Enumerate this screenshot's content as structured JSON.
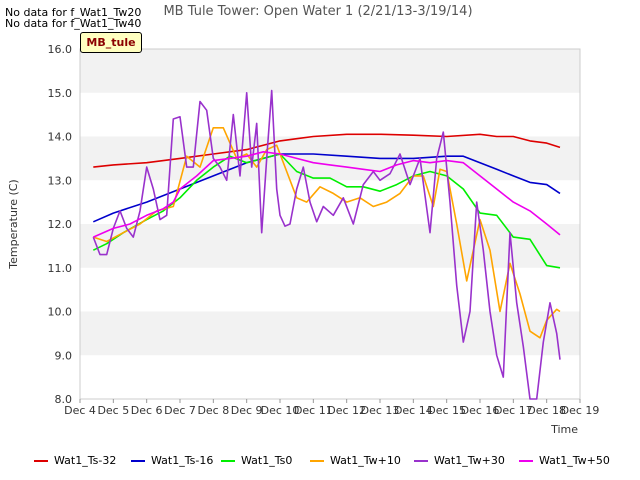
{
  "notes": [
    "No data for f_Wat1_Tw20",
    "No data for f_Wat1_Tw40"
  ],
  "badge": "MB_tule",
  "chart_data": {
    "type": "line",
    "title": "MB Tule Tower: Open Water 1 (2/21/13-3/19/14)",
    "xlabel": "Time",
    "ylabel": "Temperature (C)",
    "xlim": [
      4,
      19
    ],
    "ylim": [
      8.0,
      16.0
    ],
    "x_ticks": [
      4,
      5,
      6,
      7,
      8,
      9,
      10,
      11,
      12,
      13,
      14,
      15,
      16,
      17,
      18,
      19
    ],
    "x_tick_labels": [
      "Dec 4",
      "Dec 5",
      "Dec 6",
      "Dec 7",
      "Dec 8",
      "Dec 9",
      "Dec 10",
      "Dec 11",
      "Dec 12",
      "Dec 13",
      "Dec 14",
      "Dec 15",
      "Dec 16",
      "Dec 17",
      "Dec 18",
      "Dec 19"
    ],
    "y_ticks": [
      8.0,
      9.0,
      10.0,
      11.0,
      12.0,
      13.0,
      14.0,
      15.0,
      16.0
    ],
    "y_tick_labels": [
      "8.0",
      "9.0",
      "10.0",
      "11.0",
      "12.0",
      "13.0",
      "14.0",
      "15.0",
      "16.0"
    ],
    "grid": "horizontal bands",
    "legend_position": "bottom",
    "series": [
      {
        "name": "Wat1_Ts-32",
        "color": "#dd0000",
        "x": [
          4.4,
          5.0,
          6.0,
          7.0,
          8.0,
          9.0,
          10.0,
          10.5,
          11.0,
          12.0,
          13.0,
          14.0,
          15.0,
          16.0,
          16.5,
          17.0,
          17.5,
          18.0,
          18.4
        ],
        "y": [
          13.3,
          13.35,
          13.4,
          13.5,
          13.6,
          13.7,
          13.9,
          13.95,
          14.0,
          14.05,
          14.05,
          14.03,
          14.0,
          14.05,
          14.0,
          14.0,
          13.9,
          13.85,
          13.75
        ]
      },
      {
        "name": "Wat1_Ts-16",
        "color": "#0000cc",
        "x": [
          4.4,
          5.0,
          6.0,
          7.0,
          8.0,
          9.0,
          10.0,
          11.0,
          12.0,
          13.0,
          14.0,
          15.0,
          15.5,
          16.0,
          16.5,
          17.0,
          17.5,
          18.0,
          18.4
        ],
        "y": [
          12.05,
          12.25,
          12.5,
          12.8,
          13.1,
          13.4,
          13.6,
          13.6,
          13.55,
          13.5,
          13.5,
          13.55,
          13.55,
          13.4,
          13.25,
          13.1,
          12.95,
          12.9,
          12.7
        ]
      },
      {
        "name": "Wat1_Ts0",
        "color": "#00ee00",
        "x": [
          4.4,
          4.8,
          5.3,
          6.0,
          6.5,
          7.0,
          7.5,
          8.0,
          8.5,
          9.0,
          9.5,
          10.0,
          10.5,
          11.0,
          11.5,
          12.0,
          12.5,
          13.0,
          13.5,
          14.0,
          14.5,
          15.0,
          15.5,
          16.0,
          16.5,
          17.0,
          17.5,
          18.0,
          18.4
        ],
        "y": [
          11.4,
          11.55,
          11.8,
          12.1,
          12.3,
          12.6,
          13.0,
          13.3,
          13.55,
          13.4,
          13.5,
          13.6,
          13.2,
          13.05,
          13.05,
          12.85,
          12.85,
          12.75,
          12.9,
          13.1,
          13.2,
          13.1,
          12.8,
          12.25,
          12.2,
          11.7,
          11.65,
          11.05,
          11.0
        ]
      },
      {
        "name": "Wat1_Tw+10",
        "color": "#ffa500",
        "x": [
          4.4,
          4.8,
          5.3,
          5.8,
          6.3,
          6.8,
          7.2,
          7.6,
          8.0,
          8.3,
          8.7,
          9.0,
          9.3,
          9.6,
          9.9,
          10.2,
          10.5,
          10.8,
          11.2,
          11.6,
          12.0,
          12.4,
          12.8,
          13.2,
          13.6,
          14.0,
          14.3,
          14.6,
          14.8,
          15.0,
          15.3,
          15.6,
          16.0,
          16.3,
          16.6,
          16.9,
          17.2,
          17.5,
          17.8,
          18.0,
          18.3,
          18.4
        ],
        "y": [
          11.7,
          11.6,
          11.8,
          12.0,
          12.3,
          12.4,
          13.55,
          13.3,
          14.2,
          14.2,
          13.5,
          13.6,
          13.3,
          13.7,
          13.8,
          13.2,
          12.6,
          12.5,
          12.85,
          12.7,
          12.5,
          12.6,
          12.4,
          12.5,
          12.7,
          13.1,
          13.1,
          12.4,
          13.25,
          13.2,
          12.0,
          10.7,
          12.1,
          11.4,
          10.0,
          11.1,
          10.4,
          9.55,
          9.4,
          9.8,
          10.05,
          10.0
        ]
      },
      {
        "name": "Wat1_Tw+30",
        "color": "#9932cc",
        "x": [
          4.4,
          4.6,
          4.8,
          5.0,
          5.2,
          5.4,
          5.6,
          5.8,
          6.0,
          6.2,
          6.4,
          6.6,
          6.8,
          7.0,
          7.2,
          7.4,
          7.6,
          7.8,
          8.0,
          8.2,
          8.4,
          8.6,
          8.8,
          9.0,
          9.15,
          9.3,
          9.45,
          9.6,
          9.75,
          9.9,
          10.0,
          10.15,
          10.3,
          10.5,
          10.7,
          10.9,
          11.1,
          11.3,
          11.6,
          11.9,
          12.2,
          12.5,
          12.8,
          13.0,
          13.3,
          13.6,
          13.9,
          14.2,
          14.5,
          14.7,
          14.9,
          15.1,
          15.3,
          15.5,
          15.7,
          15.9,
          16.1,
          16.3,
          16.5,
          16.7,
          16.9,
          17.1,
          17.3,
          17.5,
          17.7,
          17.9,
          18.1,
          18.3,
          18.4
        ],
        "y": [
          11.7,
          11.3,
          11.3,
          11.9,
          12.3,
          11.9,
          11.7,
          12.3,
          13.3,
          12.8,
          12.1,
          12.2,
          14.4,
          14.45,
          13.3,
          13.3,
          14.8,
          14.6,
          13.5,
          13.3,
          13.0,
          14.5,
          13.1,
          15.0,
          13.3,
          14.3,
          11.8,
          13.5,
          15.05,
          12.8,
          12.2,
          11.95,
          12.0,
          12.8,
          13.3,
          12.5,
          12.05,
          12.4,
          12.2,
          12.6,
          12.0,
          12.9,
          13.2,
          13.0,
          13.15,
          13.6,
          12.9,
          13.5,
          11.8,
          13.5,
          14.1,
          12.5,
          10.6,
          9.3,
          10.0,
          12.5,
          11.4,
          10.0,
          9.0,
          8.5,
          11.8,
          10.2,
          9.2,
          8.0,
          8.0,
          9.3,
          10.2,
          9.5,
          8.9
        ]
      },
      {
        "name": "Wat1_Tw+50",
        "color": "#ee00ee",
        "x": [
          4.4,
          5.0,
          5.5,
          6.0,
          6.5,
          6.8,
          7.0,
          7.5,
          8.0,
          8.5,
          9.0,
          9.5,
          10.0,
          10.5,
          11.0,
          11.5,
          12.0,
          12.5,
          13.0,
          13.5,
          14.0,
          14.5,
          15.0,
          15.5,
          16.0,
          16.5,
          17.0,
          17.5,
          18.0,
          18.4
        ],
        "y": [
          11.7,
          11.9,
          12.0,
          12.2,
          12.35,
          12.5,
          12.8,
          13.1,
          13.45,
          13.5,
          13.55,
          13.65,
          13.6,
          13.5,
          13.4,
          13.35,
          13.3,
          13.25,
          13.2,
          13.35,
          13.45,
          13.4,
          13.45,
          13.4,
          13.1,
          12.8,
          12.5,
          12.3,
          12.0,
          11.75
        ]
      }
    ]
  }
}
